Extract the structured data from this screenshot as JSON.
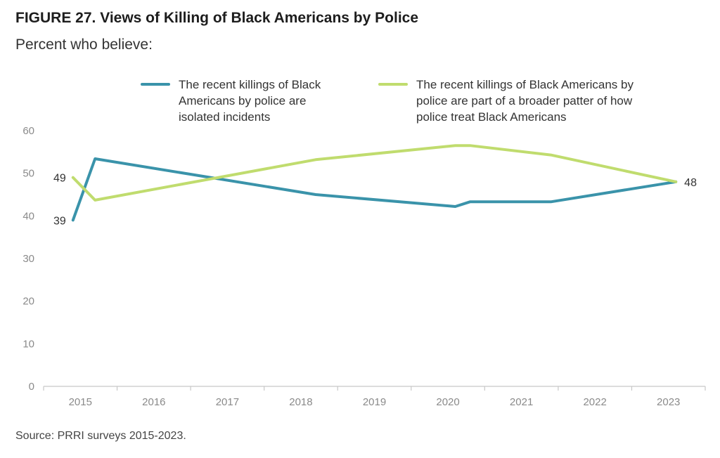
{
  "figure": {
    "title": "FIGURE 27.  Views of Killing of Black Americans by Police",
    "subtitle": "Percent who believe:",
    "source": "Source: PRRI surveys 2015-2023."
  },
  "chart_data": {
    "type": "line",
    "title": "FIGURE 27.  Views of Killing of Black Americans by Police",
    "subtitle": "Percent who believe:",
    "xlabel": "",
    "ylabel": "",
    "categories": [
      "2015",
      "2016",
      "2017",
      "2018",
      "2019",
      "2020",
      "2021",
      "2022",
      "2023"
    ],
    "xlim": [
      2015,
      2024
    ],
    "ylim": [
      0,
      60
    ],
    "yticks": [
      0,
      10,
      20,
      30,
      40,
      50,
      60
    ],
    "grid": false,
    "legend_position": "top",
    "series": [
      {
        "name": "The recent killings of Black Americans by police are isolated incidents",
        "color": "#3a93aa",
        "points": [
          [
            2015.4,
            39
          ],
          [
            2015.7,
            53.4
          ],
          [
            2018.7,
            45
          ],
          [
            2020.6,
            42.2
          ],
          [
            2020.8,
            43.3
          ],
          [
            2021.9,
            43.3
          ],
          [
            2023.6,
            48
          ]
        ]
      },
      {
        "name": "The recent killings of Black Americans by police are part of a broader patter of how police treat Black Americans",
        "color": "#c0dc6e",
        "points": [
          [
            2015.4,
            49
          ],
          [
            2015.7,
            43.7
          ],
          [
            2018.7,
            53.2
          ],
          [
            2020.6,
            56.5
          ],
          [
            2020.8,
            56.5
          ],
          [
            2021.9,
            54.3
          ],
          [
            2023.6,
            48
          ]
        ]
      }
    ],
    "data_labels": [
      {
        "series": 0,
        "point": 0,
        "text": "39",
        "side": "left"
      },
      {
        "series": 1,
        "point": 0,
        "text": "49",
        "side": "left"
      },
      {
        "series": 0,
        "point": 6,
        "text": "48",
        "side": "right"
      }
    ]
  }
}
